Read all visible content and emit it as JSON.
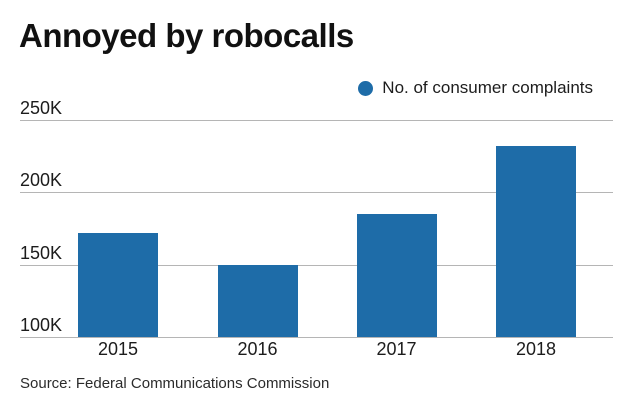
{
  "title": "Annoyed by robocalls",
  "legend": {
    "label": "No. of consumer complaints"
  },
  "source": "Source: Federal Communications Commission",
  "colors": {
    "bar": "#1e6ca8",
    "gridline": "#b5b5b5",
    "text": "#1c1c1c"
  },
  "chart_data": {
    "type": "bar",
    "title": "Annoyed by robocalls",
    "categories": [
      "2015",
      "2016",
      "2017",
      "2018"
    ],
    "series": [
      {
        "name": "No. of consumer complaints",
        "values": [
          172000,
          150000,
          185000,
          232000
        ]
      }
    ],
    "xlabel": "",
    "ylabel": "",
    "y_ticks": [
      {
        "label": "100K",
        "value": 100000
      },
      {
        "label": "150K",
        "value": 150000
      },
      {
        "label": "200K",
        "value": 200000
      },
      {
        "label": "250K",
        "value": 250000
      }
    ],
    "ylim": [
      100000,
      250000
    ],
    "grid": true,
    "legend_position": "top-right",
    "baseline_note": "bars start at 100K axis minimum"
  }
}
